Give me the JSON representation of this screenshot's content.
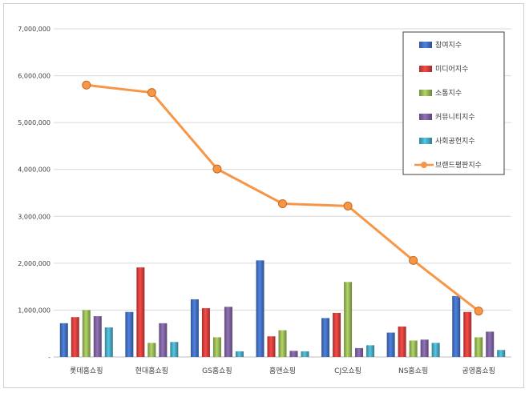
{
  "chart_data": {
    "type": "bar",
    "categories": [
      "롯데홈쇼핑",
      "현대홈쇼핑",
      "GS홈쇼핑",
      "홈앤쇼핑",
      "CJ오쇼핑",
      "NS홈쇼핑",
      "공영홈쇼핑"
    ],
    "series": [
      {
        "name": "참여지수",
        "type": "bar",
        "color": "#4472C4",
        "values": [
          720000,
          960000,
          1230000,
          2060000,
          830000,
          520000,
          1300000
        ]
      },
      {
        "name": "미디어지수",
        "type": "bar",
        "color": "#D9413E",
        "values": [
          850000,
          1910000,
          1040000,
          440000,
          940000,
          650000,
          960000
        ]
      },
      {
        "name": "소통지수",
        "type": "bar",
        "color": "#9BBB59",
        "values": [
          1000000,
          300000,
          420000,
          570000,
          1600000,
          350000,
          420000
        ]
      },
      {
        "name": "커뮤니티지수",
        "type": "bar",
        "color": "#8064A2",
        "values": [
          870000,
          720000,
          1070000,
          130000,
          190000,
          370000,
          540000
        ]
      },
      {
        "name": "사회공헌지수",
        "type": "bar",
        "color": "#4BACC6",
        "values": [
          630000,
          320000,
          120000,
          120000,
          250000,
          300000,
          150000
        ]
      },
      {
        "name": "브랜드평판지수",
        "type": "line",
        "color": "#F79646",
        "values": [
          5800000,
          5640000,
          4010000,
          3270000,
          3220000,
          2060000,
          980000
        ]
      }
    ],
    "ylim": [
      0,
      7000000
    ],
    "yticks": [
      "-",
      "1,000,000",
      "2,000,000",
      "3,000,000",
      "4,000,000",
      "5,000,000",
      "6,000,000",
      "7,000,000"
    ],
    "grid": true,
    "legend_position": "top-right"
  }
}
